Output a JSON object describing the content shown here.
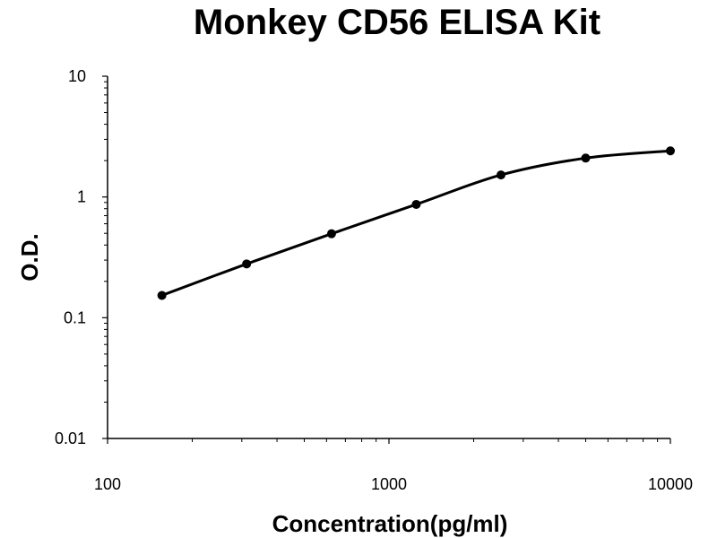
{
  "chart_data": {
    "type": "line",
    "title": "Monkey CD56 ELISA Kit",
    "xlabel": "Concentration(pg/ml)",
    "ylabel": "O.D.",
    "xscale": "log",
    "yscale": "log",
    "xlim": [
      100,
      10000
    ],
    "ylim": [
      0.01,
      10
    ],
    "x_tick_labels": [
      "100",
      "1000",
      "10000"
    ],
    "y_tick_labels": [
      "10",
      "1",
      "0.1",
      "0.01"
    ],
    "grid": false,
    "legend": "none",
    "series": [
      {
        "x": [
          156,
          312,
          625,
          1250,
          2500,
          5000,
          10000
        ],
        "y": [
          0.153,
          0.279,
          0.496,
          0.868,
          1.522,
          2.099,
          2.409
        ]
      }
    ],
    "colors": {
      "line": "#000000",
      "marker": "#000000",
      "axis": "#000000"
    }
  }
}
